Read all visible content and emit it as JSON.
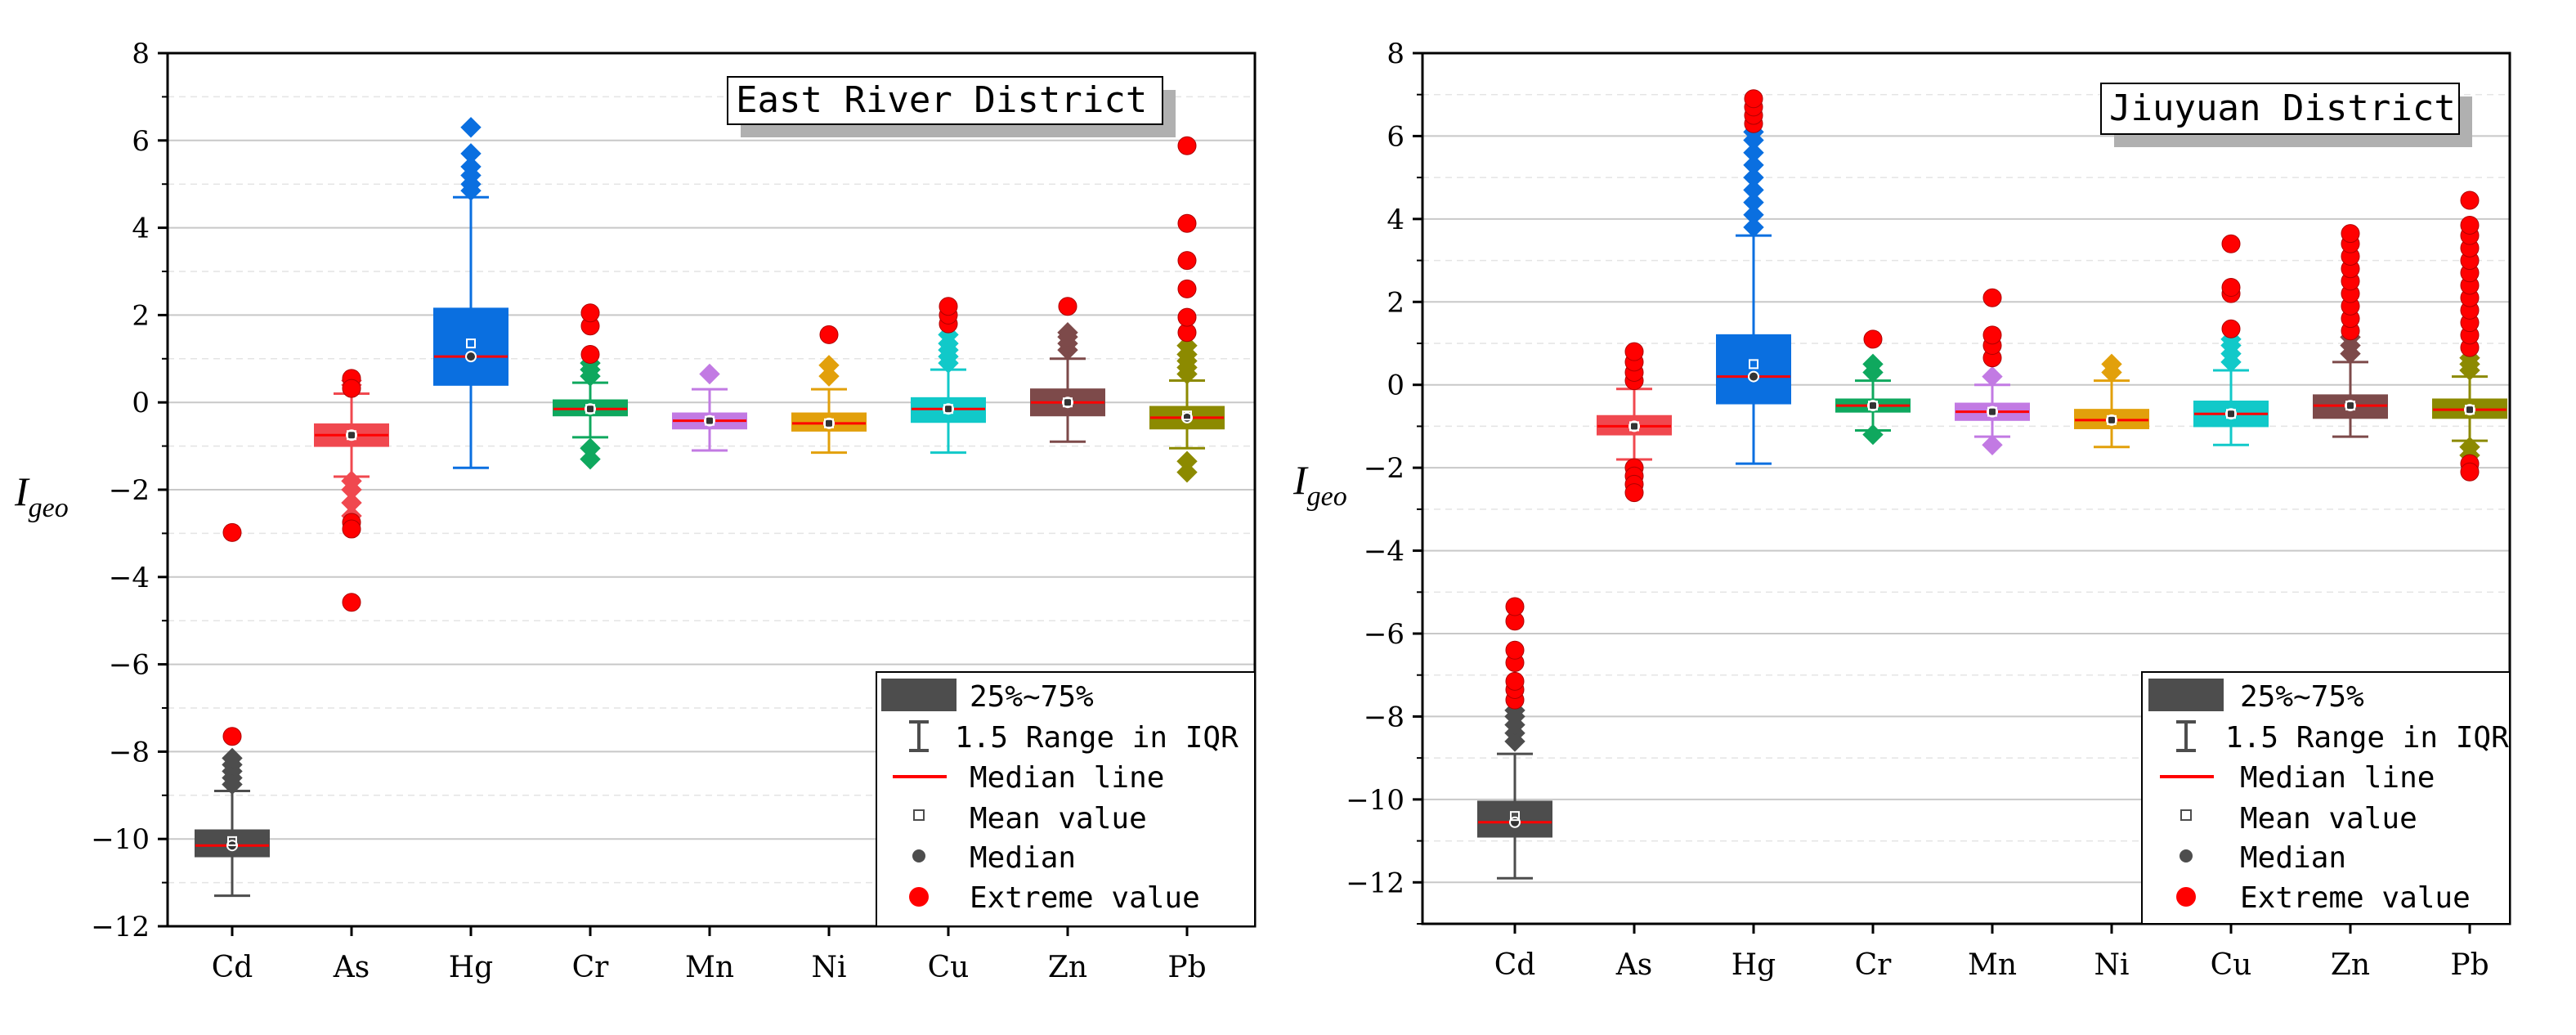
{
  "legend": {
    "box": "25%~75%",
    "whisker": "1.5 Range in IQR",
    "median_line": "Median line",
    "mean": "Mean value",
    "median": "Median",
    "extreme": "Extreme value"
  },
  "colors": {
    "Cd": "#4d4d4d",
    "As": "#f0484f",
    "Hg": "#0a6fe0",
    "Cr": "#0fa85e",
    "Mn": "#c27ae3",
    "Ni": "#e2a00b",
    "Cu": "#11c9c9",
    "Zn": "#7d4a4a",
    "Pb": "#8c8a00",
    "median_line": "#ff0000",
    "extreme": "#ff0000",
    "grid": "#c8c8c8",
    "axis": "#000000"
  },
  "chart_data": [
    {
      "type": "box",
      "title": "East River District",
      "ylabel": "Igeo",
      "ylabel_main": "I",
      "ylabel_sub": "geo",
      "ylim": [
        -12,
        8
      ],
      "yticks": [
        -12,
        -10,
        -8,
        -6,
        -4,
        -2,
        0,
        2,
        4,
        6,
        8
      ],
      "categories": [
        "Cd",
        "As",
        "Hg",
        "Cr",
        "Mn",
        "Ni",
        "Cu",
        "Zn",
        "Pb"
      ],
      "boxes": [
        {
          "name": "Cd",
          "q1": -10.4,
          "q3": -9.8,
          "median": -10.15,
          "mean": -10.05,
          "whisker_low": -11.3,
          "whisker_high": -8.9,
          "outliers_diamond": [
            -8.3,
            -8.45,
            -8.6,
            -8.75,
            -8.15
          ],
          "outliers_extreme": [
            -7.65,
            -2.98
          ]
        },
        {
          "name": "As",
          "q1": -1.0,
          "q3": -0.5,
          "median": -0.75,
          "mean": -0.75,
          "whisker_low": -1.7,
          "whisker_high": 0.2,
          "outliers_diamond": [
            0.4,
            0.5,
            -1.8,
            -2.0,
            -2.3,
            -2.6
          ],
          "outliers_extreme": [
            0.55,
            0.32,
            -2.75,
            -2.9,
            -4.58
          ]
        },
        {
          "name": "Hg",
          "q1": 0.4,
          "q3": 2.15,
          "median": 1.05,
          "mean": 1.35,
          "whisker_low": -1.5,
          "whisker_high": 4.7,
          "outliers_diamond": [
            4.85,
            5.0,
            5.2,
            5.4,
            5.7,
            6.3
          ],
          "outliers_extreme": []
        },
        {
          "name": "Cr",
          "q1": -0.3,
          "q3": 0.05,
          "median": -0.15,
          "mean": -0.15,
          "whisker_low": -0.8,
          "whisker_high": 0.45,
          "outliers_diamond": [
            0.6,
            0.75,
            0.9,
            -1.05,
            -1.3
          ],
          "outliers_extreme": [
            1.1,
            1.75,
            2.05
          ]
        },
        {
          "name": "Mn",
          "q1": -0.6,
          "q3": -0.25,
          "median": -0.42,
          "mean": -0.42,
          "whisker_low": -1.1,
          "whisker_high": 0.3,
          "outliers_diamond": [
            0.65
          ],
          "outliers_extreme": []
        },
        {
          "name": "Ni",
          "q1": -0.65,
          "q3": -0.25,
          "median": -0.48,
          "mean": -0.48,
          "whisker_low": -1.15,
          "whisker_high": 0.3,
          "outliers_diamond": [
            0.6,
            0.85
          ],
          "outliers_extreme": [
            1.55
          ]
        },
        {
          "name": "Cu",
          "q1": -0.45,
          "q3": 0.1,
          "median": -0.15,
          "mean": -0.15,
          "whisker_low": -1.15,
          "whisker_high": 0.75,
          "outliers_diamond": [
            0.9,
            1.05,
            1.2,
            1.35,
            1.55
          ],
          "outliers_extreme": [
            1.8,
            2.0,
            2.2
          ]
        },
        {
          "name": "Zn",
          "q1": -0.3,
          "q3": 0.3,
          "median": 0.0,
          "mean": 0.0,
          "whisker_low": -0.9,
          "whisker_high": 1.0,
          "outliers_diamond": [
            1.2,
            1.35,
            1.5,
            1.6
          ],
          "outliers_extreme": [
            2.2
          ]
        },
        {
          "name": "Pb",
          "q1": -0.6,
          "q3": -0.1,
          "median": -0.35,
          "mean": -0.3,
          "whisker_low": -1.05,
          "whisker_high": 0.5,
          "outliers_diamond": [
            0.65,
            0.8,
            0.95,
            1.1,
            1.3,
            -1.35,
            -1.6
          ],
          "outliers_extreme": [
            1.6,
            1.95,
            2.6,
            3.25,
            4.1,
            5.88
          ]
        }
      ]
    },
    {
      "type": "box",
      "title": "Jiuyuan District",
      "ylabel": "Igeo",
      "ylabel_main": "I",
      "ylabel_sub": "geo",
      "ylim": [
        -13,
        8
      ],
      "yticks": [
        -12,
        -10,
        -8,
        -6,
        -4,
        -2,
        0,
        2,
        4,
        6,
        8
      ],
      "categories": [
        "Cd",
        "As",
        "Hg",
        "Cr",
        "Mn",
        "Ni",
        "Cu",
        "Zn",
        "Pb"
      ],
      "boxes": [
        {
          "name": "Cd",
          "q1": -10.9,
          "q3": -10.05,
          "median": -10.55,
          "mean": -10.4,
          "whisker_low": -11.9,
          "whisker_high": -8.9,
          "outliers_diamond": [
            -8.6,
            -8.4,
            -8.2,
            -8.0,
            -7.85
          ],
          "outliers_extreme": [
            -7.6,
            -7.35,
            -7.15,
            -6.7,
            -6.4,
            -5.7,
            -5.35
          ]
        },
        {
          "name": "As",
          "q1": -1.2,
          "q3": -0.75,
          "median": -1.0,
          "mean": -1.0,
          "whisker_low": -1.8,
          "whisker_high": -0.1,
          "outliers_diamond": [],
          "outliers_extreme": [
            0.1,
            0.3,
            0.55,
            0.8,
            -2.0,
            -2.2,
            -2.4,
            -2.6
          ]
        },
        {
          "name": "Hg",
          "q1": -0.45,
          "q3": 1.2,
          "median": 0.2,
          "mean": 0.5,
          "whisker_low": -1.9,
          "whisker_high": 3.6,
          "outliers_diamond": [
            3.8,
            4.1,
            4.4,
            4.7,
            5.0,
            5.3,
            5.6,
            5.9,
            6.1
          ],
          "outliers_extreme": [
            6.3,
            6.5,
            6.7,
            6.9
          ]
        },
        {
          "name": "Cr",
          "q1": -0.65,
          "q3": -0.35,
          "median": -0.5,
          "mean": -0.5,
          "whisker_low": -1.1,
          "whisker_high": 0.1,
          "outliers_diamond": [
            0.3,
            0.5,
            -1.2
          ],
          "outliers_extreme": [
            1.1
          ]
        },
        {
          "name": "Mn",
          "q1": -0.85,
          "q3": -0.45,
          "median": -0.65,
          "mean": -0.65,
          "whisker_low": -1.25,
          "whisker_high": 0.0,
          "outliers_diamond": [
            0.2,
            -1.45
          ],
          "outliers_extreme": [
            0.65,
            0.95,
            1.2,
            2.1
          ]
        },
        {
          "name": "Ni",
          "q1": -1.05,
          "q3": -0.6,
          "median": -0.85,
          "mean": -0.85,
          "whisker_low": -1.5,
          "whisker_high": 0.1,
          "outliers_diamond": [
            0.3,
            0.5
          ],
          "outliers_extreme": []
        },
        {
          "name": "Cu",
          "q1": -1.0,
          "q3": -0.4,
          "median": -0.7,
          "mean": -0.7,
          "whisker_low": -1.45,
          "whisker_high": 0.35,
          "outliers_diamond": [
            0.55,
            0.75,
            0.95,
            1.1
          ],
          "outliers_extreme": [
            1.35,
            2.2,
            2.35,
            3.4
          ]
        },
        {
          "name": "Zn",
          "q1": -0.8,
          "q3": -0.25,
          "median": -0.5,
          "mean": -0.5,
          "whisker_low": -1.25,
          "whisker_high": 0.55,
          "outliers_diamond": [
            0.75,
            0.95,
            1.15
          ],
          "outliers_extreme": [
            1.3,
            1.6,
            1.9,
            2.2,
            2.5,
            2.8,
            3.1,
            3.4,
            3.65
          ]
        },
        {
          "name": "Pb",
          "q1": -0.8,
          "q3": -0.35,
          "median": -0.6,
          "mean": -0.6,
          "whisker_low": -1.35,
          "whisker_high": 0.2,
          "outliers_diamond": [
            0.35,
            0.5,
            0.65,
            -1.5,
            -1.7
          ],
          "outliers_extreme": [
            0.9,
            1.2,
            1.5,
            1.8,
            2.1,
            2.4,
            2.7,
            3.0,
            3.3,
            3.6,
            3.85,
            4.45,
            -1.9,
            -2.1
          ]
        }
      ]
    }
  ]
}
